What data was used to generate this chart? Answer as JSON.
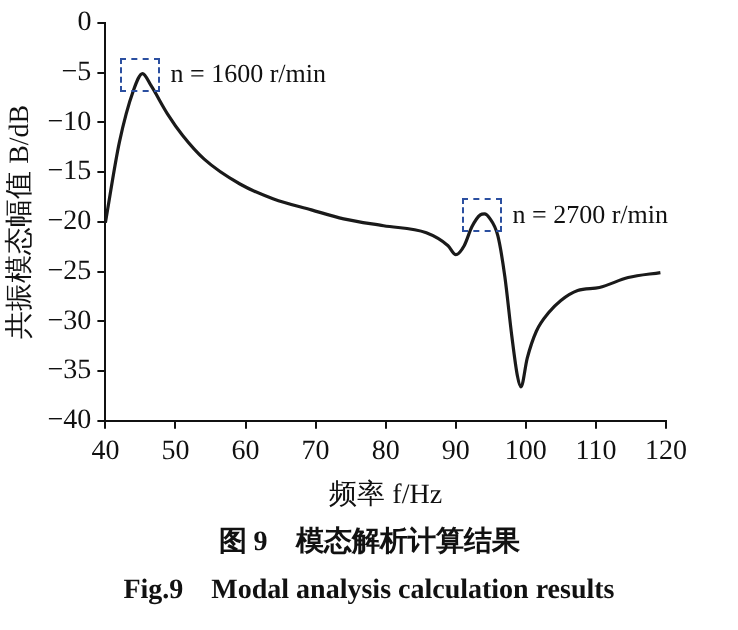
{
  "chart_data": {
    "type": "line",
    "title": "图 9　模态解析计算结果",
    "subtitle": "Fig.9　Modal analysis calculation results",
    "xlabel": "频率 f/Hz",
    "ylabel": "共振模态幅值 B/dB",
    "series": [
      {
        "color": "#1a1a1a",
        "x": [
          40,
          42,
          44,
          45.3,
          46.5,
          48.9,
          51,
          54.1,
          59.2,
          64,
          69.4,
          74,
          79.7,
          85.8,
          88.9,
          90,
          91.2,
          92.3,
          93.5,
          94.1,
          94.8,
          96,
          97,
          98,
          98.8,
          99.3,
          100.2,
          101.5,
          103.3,
          105,
          107.4,
          110.5,
          114.6,
          119.2
        ],
        "values": [
          -20.1,
          -12,
          -6.8,
          -5.1,
          -6.3,
          -9.2,
          -11.3,
          -13.7,
          -16.2,
          -17.7,
          -18.8,
          -19.7,
          -20.4,
          -21.1,
          -22.4,
          -23.3,
          -22.4,
          -20.5,
          -19.3,
          -19.2,
          -19.6,
          -21.4,
          -25.5,
          -31.5,
          -35.5,
          -36.6,
          -33.7,
          -31,
          -29.1,
          -27.9,
          -26.9,
          -26.6,
          -25.6,
          -25.1
        ]
      }
    ],
    "annotations": [
      {
        "text": "n = 1600 r/min",
        "x": 45.3,
        "y": -5.1
      },
      {
        "text": "n = 2700 r/min",
        "x": 94.1,
        "y": -19.2
      }
    ],
    "xlim": [
      40,
      120
    ],
    "xticks": [
      40,
      50,
      60,
      70,
      80,
      90,
      100,
      110,
      120
    ],
    "ylim": [
      -40,
      0
    ],
    "yticks": [
      -40,
      -35,
      -30,
      -25,
      -20,
      -15,
      -10,
      -5,
      0
    ],
    "grid": false,
    "legend": false,
    "marker": "none",
    "line_style": "solid"
  }
}
